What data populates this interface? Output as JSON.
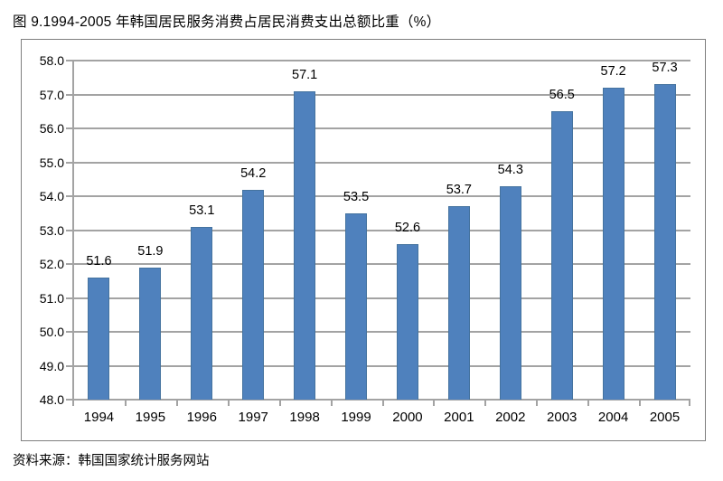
{
  "page": {
    "title": "图 9.1994-2005 年韩国居民服务消费占居民消费支出总额比重（%）",
    "source": "资料来源：韩国国家统计服务网站"
  },
  "chart_data": {
    "type": "bar",
    "title": "图 9.1994-2005 年韩国居民服务消费占居民消费支出总额比重（%）",
    "source_note": "资料来源：韩国国家统计服务网站",
    "categories": [
      "1994",
      "1995",
      "1996",
      "1997",
      "1998",
      "1999",
      "2000",
      "2001",
      "2002",
      "2003",
      "2004",
      "2005"
    ],
    "values": [
      51.6,
      51.9,
      53.1,
      54.2,
      57.1,
      53.5,
      52.6,
      53.7,
      54.3,
      56.5,
      57.2,
      57.3
    ],
    "value_labels": [
      "51.6",
      "51.9",
      "53.1",
      "54.2",
      "57.1",
      "53.5",
      "52.6",
      "53.7",
      "54.3",
      "56.5",
      "57.2",
      "57.3"
    ],
    "xlabel": "",
    "ylabel": "",
    "ylim": [
      48.0,
      58.0
    ],
    "ytick_step": 1.0,
    "ytick_labels": [
      "48.0",
      "49.0",
      "50.0",
      "51.0",
      "52.0",
      "53.0",
      "54.0",
      "55.0",
      "56.0",
      "57.0",
      "58.0"
    ],
    "grid": true,
    "legend_position": "none",
    "bar_color": "#4f81bd",
    "bar_border_color": "#45739f",
    "gridline_color": "#a3a3a3",
    "frame_border_color": "#7f7f7f"
  }
}
